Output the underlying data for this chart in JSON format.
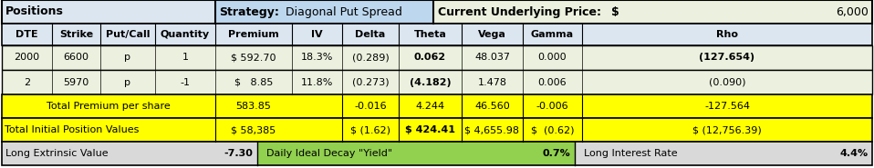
{
  "title_left": "Positions",
  "title_strategy_label": "Strategy:",
  "title_strategy_value": "Diagonal Put Spread",
  "title_price_label": "Current Underlying Price:",
  "title_price_symbol": "$",
  "title_price_value": "6,000",
  "headers": [
    "DTE",
    "Strike",
    "Put/Call",
    "Quantity",
    "Premium",
    "IV",
    "Delta",
    "Theta",
    "Vega",
    "Gamma",
    "Rho"
  ],
  "row1": [
    "2000",
    "6600",
    "p",
    "1",
    "$ 592.70",
    "18.3%",
    "(0.289)",
    "0.062",
    "48.037",
    "0.000",
    "(127.654)"
  ],
  "row1_bold": [
    false,
    false,
    false,
    false,
    false,
    false,
    false,
    true,
    false,
    false,
    true
  ],
  "row2": [
    "2",
    "5970",
    "p",
    "-1",
    "$   8.85",
    "11.8%",
    "(0.273)",
    "(4.182)",
    "1.478",
    "0.006",
    "(0.090)"
  ],
  "row2_bold": [
    false,
    false,
    false,
    false,
    false,
    false,
    false,
    true,
    false,
    false,
    false
  ],
  "total_row1_label": "Total Premium per share",
  "total_row1_premium": "583.85",
  "total_row1_delta": "-0.016",
  "total_row1_theta": "4.244",
  "total_row1_vega": "46.560",
  "total_row1_gamma": "-0.006",
  "total_row1_rho": "-127.564",
  "total_row2_label": "Total Initial Position Values",
  "total_row2_premium": "$ 58,385",
  "total_row2_delta": "$ (1.62)",
  "total_row2_theta": "$ 424.41",
  "total_row2_vega": "$ 4,655.98",
  "total_row2_gamma": "$  (0.62)",
  "total_row2_rho": "$ (12,756.39)",
  "bottom_left_label": "Long Extrinsic Value",
  "bottom_left_value": "-7.30",
  "bottom_mid_label": "Daily Ideal Decay \"Yield\"",
  "bottom_mid_value": "0.7%",
  "bottom_right_label": "Long Interest Rate",
  "bottom_right_value": "4.4%",
  "color_positions_bg": "#dce6f1",
  "color_strategy_bg": "#bdd7ee",
  "color_price_bg": "#ebf1de",
  "color_header_row_bg": "#dce6f1",
  "color_data_row_bg": "#ebf1de",
  "color_yellow": "#ffff00",
  "color_bottom_gray": "#d9d9d9",
  "color_bottom_green": "#92d050"
}
